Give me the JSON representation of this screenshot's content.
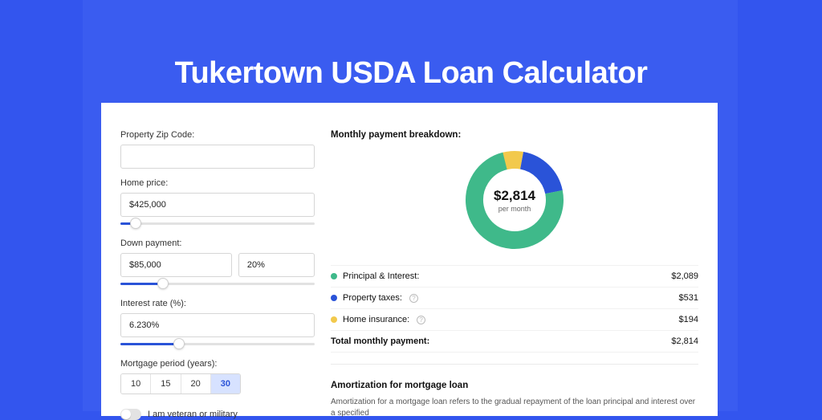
{
  "colors": {
    "page_bg": "#3355ee",
    "outer_bg": "#3a5cf0",
    "card_bg": "#ffffff",
    "accent": "#2a53d8",
    "input_border": "#d6d6d6",
    "slider_track": "#e2e2e2",
    "seg_active_bg": "#d7e2ff",
    "toggle_bg": "#e3e3e3",
    "divider": "#f1f1f1"
  },
  "page_title": "Tukertown USDA Loan Calculator",
  "form": {
    "zip": {
      "label": "Property Zip Code:",
      "value": ""
    },
    "home_price": {
      "label": "Home price:",
      "value": "$425,000",
      "slider_pct": 8
    },
    "down_payment": {
      "label": "Down payment:",
      "amount": "$85,000",
      "percent": "20%",
      "slider_pct": 22
    },
    "interest_rate": {
      "label": "Interest rate (%):",
      "value": "6.230%",
      "slider_pct": 30
    },
    "mortgage_period": {
      "label": "Mortgage period (years):",
      "options": [
        "10",
        "15",
        "20",
        "30"
      ],
      "selected_index": 3
    },
    "veteran": {
      "label": "I am veteran or military",
      "checked": false
    }
  },
  "breakdown": {
    "heading": "Monthly payment breakdown:",
    "total_amount": "$2,814",
    "per_month": "per month",
    "donut": {
      "radius": 50,
      "stroke_width": 22,
      "background": "#ffffff",
      "segments": [
        {
          "label": "Principal & Interest:",
          "value": "$2,089",
          "pct": 74.2,
          "color": "#3fb98a"
        },
        {
          "label": "Property taxes:",
          "value": "$531",
          "pct": 18.9,
          "color": "#2a53d8",
          "help": true
        },
        {
          "label": "Home insurance:",
          "value": "$194",
          "pct": 6.9,
          "color": "#f2c94c",
          "help": true
        }
      ]
    },
    "total_row": {
      "label": "Total monthly payment:",
      "value": "$2,814"
    }
  },
  "amortization": {
    "heading": "Amortization for mortgage loan",
    "text": "Amortization for a mortgage loan refers to the gradual repayment of the loan principal and interest over a specified"
  }
}
